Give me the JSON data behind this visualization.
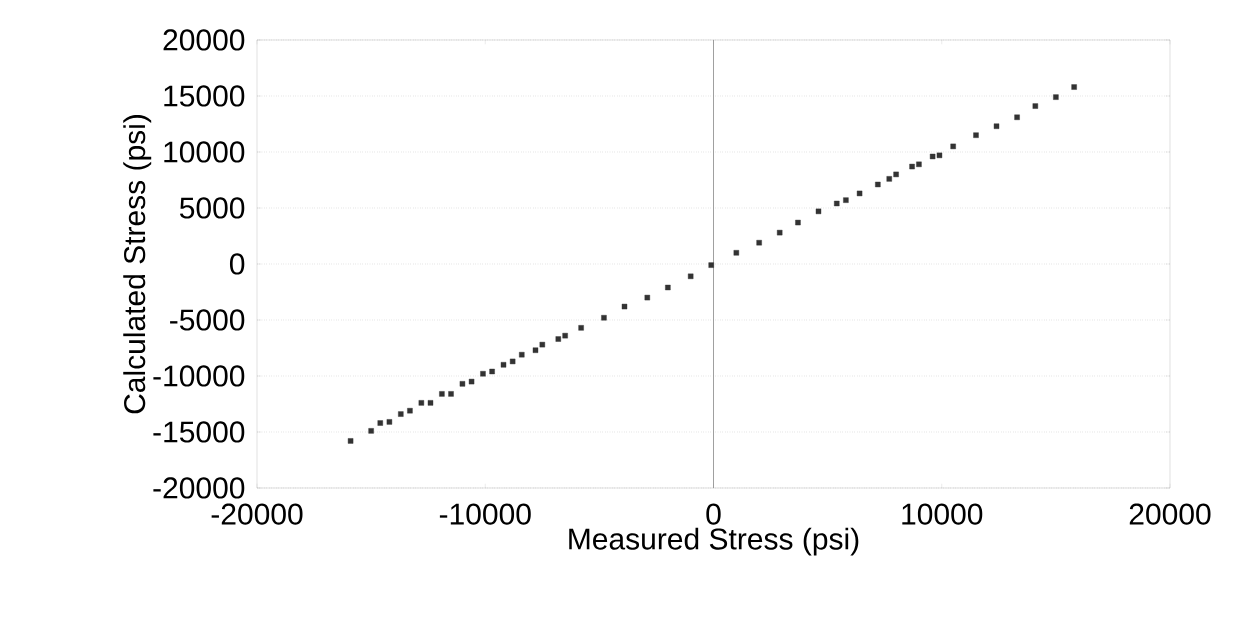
{
  "chart_data": {
    "type": "scatter",
    "xlabel": "Measured Stress (psi)",
    "ylabel": "Calculated Stress (psi)",
    "xlim": [
      -20000,
      20000
    ],
    "ylim": [
      -20000,
      20000
    ],
    "xticks": [
      -20000,
      -10000,
      0,
      10000,
      20000
    ],
    "yticks": [
      -20000,
      -15000,
      -10000,
      -5000,
      0,
      5000,
      10000,
      15000,
      20000
    ],
    "grid": "y",
    "marker": "square",
    "ref_lines": [
      {
        "axis": "x",
        "value": 0,
        "color": "#888888"
      }
    ],
    "series": [
      {
        "color": "#333333",
        "x": [
          -15900,
          -15000,
          -14600,
          -14200,
          -13700,
          -13300,
          -12800,
          -12400,
          -11900,
          -11500,
          -11000,
          -10600,
          -10100,
          -9700,
          -9200,
          -8800,
          -8400,
          -7800,
          -7500,
          -6800,
          -6500,
          -5800,
          -4800,
          -3900,
          -2900,
          -2000,
          -1000,
          -100,
          1000,
          2000,
          2900,
          3700,
          4600,
          5400,
          5800,
          6400,
          7200,
          7700,
          8000,
          8700,
          9000,
          9600,
          9900,
          10500,
          11500,
          12400,
          13300,
          14100,
          15000,
          15800
        ],
        "values": [
          -15800,
          -14900,
          -14200,
          -14100,
          -13400,
          -13100,
          -12400,
          -12400,
          -11600,
          -11600,
          -10700,
          -10500,
          -9800,
          -9600,
          -9000,
          -8700,
          -8100,
          -7700,
          -7200,
          -6700,
          -6400,
          -5700,
          -4800,
          -3800,
          -3000,
          -2100,
          -1100,
          -100,
          1000,
          1900,
          2800,
          3700,
          4700,
          5400,
          5700,
          6300,
          7100,
          7600,
          8000,
          8700,
          8900,
          9600,
          9700,
          10500,
          11500,
          12300,
          13100,
          14100,
          14900,
          15800
        ]
      }
    ]
  }
}
